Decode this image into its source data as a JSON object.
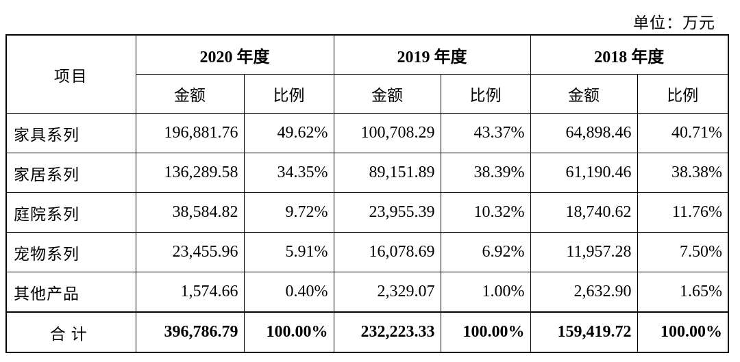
{
  "unit_label": "单位：万元",
  "table": {
    "item_header": "项目",
    "years": [
      "2020 年度",
      "2019 年度",
      "2018 年度"
    ],
    "sub_headers": [
      "金额",
      "比例"
    ],
    "rows": [
      {
        "label": "家具系列",
        "values": [
          "196,881.76",
          "49.62%",
          "100,708.29",
          "43.37%",
          "64,898.46",
          "40.71%"
        ]
      },
      {
        "label": "家居系列",
        "values": [
          "136,289.58",
          "34.35%",
          "89,151.89",
          "38.39%",
          "61,190.46",
          "38.38%"
        ]
      },
      {
        "label": "庭院系列",
        "values": [
          "38,584.82",
          "9.72%",
          "23,955.39",
          "10.32%",
          "18,740.62",
          "11.76%"
        ]
      },
      {
        "label": "宠物系列",
        "values": [
          "23,455.96",
          "5.91%",
          "16,078.69",
          "6.92%",
          "11,957.28",
          "7.50%"
        ]
      },
      {
        "label": "其他产品",
        "values": [
          "1,574.66",
          "0.40%",
          "2,329.07",
          "1.00%",
          "2,632.90",
          "1.65%"
        ]
      }
    ],
    "total": {
      "label": "合计",
      "values": [
        "396,786.79",
        "100.00%",
        "232,223.33",
        "100.00%",
        "159,419.72",
        "100.00%"
      ]
    }
  }
}
